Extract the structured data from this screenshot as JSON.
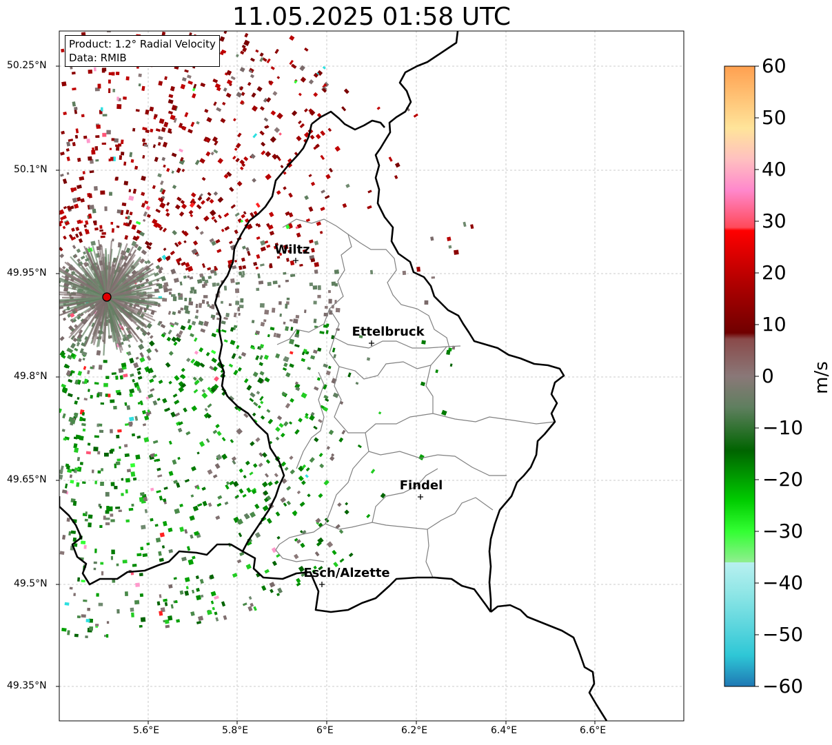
{
  "title": "11.05.2025 01:58 UTC",
  "info": {
    "product": "Product: 1.2° Radial Velocity",
    "source": "Data: RMIB"
  },
  "cities": [
    {
      "name": "Wiltz",
      "lon": 5.93,
      "lat": 49.967
    },
    {
      "name": "Ettelbruck",
      "lon": 6.1,
      "lat": 49.847
    },
    {
      "name": "Findel",
      "lon": 6.21,
      "lat": 49.627
    },
    {
      "name": "Esch/Alzette",
      "lon": 5.99,
      "lat": 49.497
    }
  ],
  "radar_site": {
    "lon": 5.505,
    "lat": 49.914
  },
  "axes": {
    "lon_ticks": [
      "5.6°E",
      "5.8°E",
      "6°E",
      "6.2°E",
      "6.4°E",
      "6.6°E"
    ],
    "lat_ticks": [
      "49.35°N",
      "49.5°N",
      "49.65°N",
      "49.8°N",
      "49.95°N",
      "50.1°N",
      "50.25°N"
    ]
  },
  "colorbar": {
    "label": "m/s",
    "ticks": [
      "60",
      "50",
      "40",
      "30",
      "20",
      "10",
      "0",
      "−10",
      "−20",
      "−30",
      "−40",
      "−50",
      "−60"
    ],
    "range": [
      -60,
      60
    ],
    "colors": [
      "#1f78b4",
      "#2ec7d6",
      "#8fe6e6",
      "#b8f0f0",
      "#90ee90",
      "#33ff33",
      "#00cc00",
      "#009000",
      "#006400",
      "#5f7f5f",
      "#8a7070",
      "#800000",
      "#b00000",
      "#ff0000",
      "#ff5566",
      "#ff88cc",
      "#ffbbbb",
      "#ffe09a",
      "#ffa050"
    ]
  }
}
